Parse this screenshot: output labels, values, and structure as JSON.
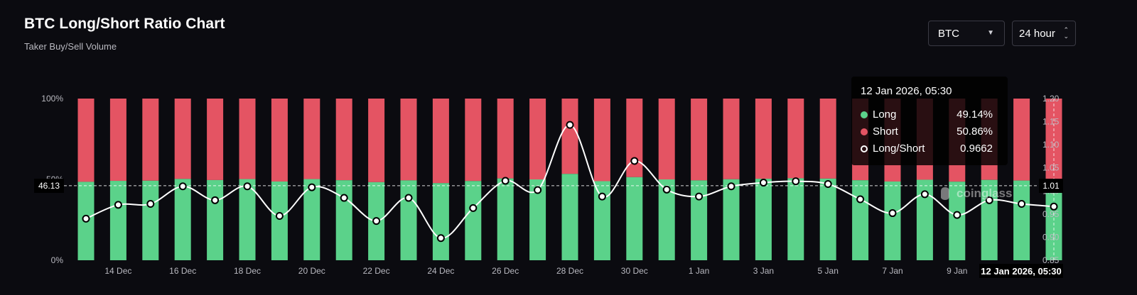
{
  "header": {
    "title": "BTC Long/Short Ratio Chart",
    "subtitle": "Taker Buy/Sell Volume"
  },
  "controls": {
    "symbol": "BTC",
    "interval": "24 hour",
    "symbol_icon": "caret-down-icon",
    "interval_icon": "up-down-icon"
  },
  "watermark": "coinglass",
  "tooltip": {
    "title": "12 Jan 2026, 05:30",
    "rows": [
      {
        "label": "Long",
        "value": "49.14%",
        "color": "#5bd28a"
      },
      {
        "label": "Short",
        "value": "50.86%",
        "color": "#e45463"
      },
      {
        "label": "Long/Short",
        "value": "0.9662",
        "color": "#ffffff"
      }
    ]
  },
  "cursor": {
    "x_label": "12 Jan 2026, 05:30",
    "left_value": "46.13",
    "right_value": "1.01"
  },
  "colors": {
    "long": "#5bd28a",
    "short": "#e45463",
    "ratio_line": "#ffffff",
    "background": "#0b0b10"
  },
  "chart_data": {
    "type": "bar",
    "stacked": true,
    "categories": [
      "13 Dec",
      "14 Dec",
      "15 Dec",
      "16 Dec",
      "17 Dec",
      "18 Dec",
      "19 Dec",
      "20 Dec",
      "21 Dec",
      "22 Dec",
      "23 Dec",
      "24 Dec",
      "25 Dec",
      "26 Dec",
      "27 Dec",
      "28 Dec",
      "29 Dec",
      "30 Dec",
      "31 Dec",
      "1 Jan",
      "2 Jan",
      "3 Jan",
      "4 Jan",
      "5 Jan",
      "6 Jan",
      "7 Jan",
      "8 Jan",
      "9 Jan",
      "10 Jan",
      "11 Jan",
      "12 Jan"
    ],
    "x_tick_labels": [
      "14 Dec",
      "16 Dec",
      "18 Dec",
      "20 Dec",
      "22 Dec",
      "24 Dec",
      "26 Dec",
      "28 Dec",
      "30 Dec",
      "1 Jan",
      "3 Jan",
      "5 Jan",
      "7 Jan",
      "9 Jan"
    ],
    "series": [
      {
        "name": "Long",
        "axis": "left",
        "values": [
          48.5,
          49.1,
          49.2,
          50.3,
          49.6,
          50.2,
          48.7,
          50.2,
          49.5,
          48.3,
          49.4,
          47.7,
          49.0,
          50.6,
          50.0,
          53.4,
          48.9,
          51.4,
          50.0,
          49.4,
          50.1,
          50.4,
          50.7,
          50.5,
          49.5,
          48.7,
          49.8,
          48.6,
          49.7,
          49.3,
          49.14
        ]
      },
      {
        "name": "Short",
        "axis": "left",
        "values": [
          51.5,
          50.9,
          50.8,
          49.7,
          50.4,
          49.8,
          51.3,
          49.8,
          50.5,
          51.7,
          50.6,
          52.3,
          51.0,
          49.4,
          50.0,
          46.6,
          51.1,
          48.6,
          50.0,
          50.6,
          49.9,
          49.6,
          49.3,
          49.5,
          50.5,
          51.3,
          50.2,
          51.4,
          50.3,
          50.7,
          50.86
        ]
      },
      {
        "name": "Long/Short",
        "type": "line",
        "axis": "right",
        "values": [
          0.94,
          0.97,
          0.972,
          1.01,
          0.98,
          1.01,
          0.946,
          1.008,
          0.985,
          0.935,
          0.985,
          0.898,
          0.963,
          1.022,
          1.002,
          1.143,
          0.988,
          1.065,
          1.003,
          0.988,
          1.01,
          1.018,
          1.021,
          1.015,
          0.982,
          0.952,
          0.993,
          0.948,
          0.98,
          0.972,
          0.9662
        ]
      }
    ],
    "y_left": {
      "ticks": [
        "0%",
        "50%",
        "100%"
      ],
      "ylim": [
        0,
        100
      ]
    },
    "y_right": {
      "ticks": [
        "0.85",
        "0.90",
        "0.95",
        "1.00",
        "1.05",
        "1.10",
        "1.15",
        "1.20"
      ],
      "ylim": [
        0.85,
        1.2
      ]
    },
    "legend": "none",
    "grid": false
  }
}
